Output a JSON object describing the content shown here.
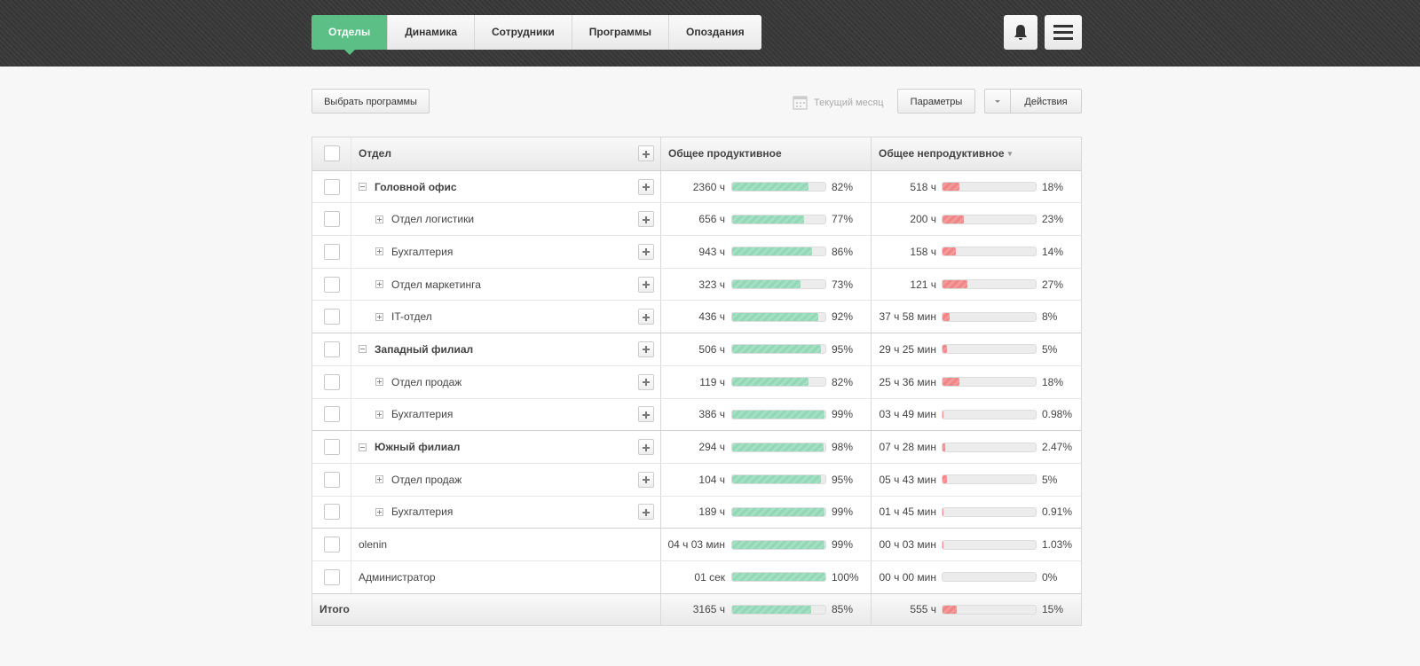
{
  "nav": {
    "tabs": [
      "Отделы",
      "Динамика",
      "Сотрудники",
      "Программы",
      "Опоздания"
    ],
    "active": 0
  },
  "toolbar": {
    "select_programs": "Выбрать программы",
    "period": "Текущий месяц",
    "params": "Параметры",
    "actions": "Действия"
  },
  "table": {
    "headers": [
      "Отдел",
      "Общее продуктивное",
      "Общее непродуктивное"
    ],
    "rows": [
      {
        "name": "Головной офис",
        "level": "group",
        "productive": "2360 ч",
        "productive_pct": {
          "value": 82,
          "label": "82%"
        },
        "unproductive": "518 ч",
        "unproductive_pct": {
          "value": 18,
          "label": "18%"
        }
      },
      {
        "name": "Отдел логистики",
        "level": "sub",
        "productive": "656 ч",
        "productive_pct": {
          "value": 77,
          "label": "77%"
        },
        "unproductive": "200 ч",
        "unproductive_pct": {
          "value": 23,
          "label": "23%"
        }
      },
      {
        "name": "Бухгалтерия",
        "level": "sub",
        "productive": "943 ч",
        "productive_pct": {
          "value": 86,
          "label": "86%"
        },
        "unproductive": "158 ч",
        "unproductive_pct": {
          "value": 14,
          "label": "14%"
        }
      },
      {
        "name": "Отдел маркетинга",
        "level": "sub",
        "productive": "323 ч",
        "productive_pct": {
          "value": 73,
          "label": "73%"
        },
        "unproductive": "121 ч",
        "unproductive_pct": {
          "value": 27,
          "label": "27%"
        }
      },
      {
        "name": "IT-отдел",
        "level": "sub",
        "productive": "436 ч",
        "productive_pct": {
          "value": 92,
          "label": "92%"
        },
        "unproductive": "37 ч 58 мин",
        "unproductive_pct": {
          "value": 8,
          "label": "8%"
        }
      },
      {
        "name": "Западный филиал",
        "level": "group",
        "productive": "506 ч",
        "productive_pct": {
          "value": 95,
          "label": "95%"
        },
        "unproductive": "29 ч 25 мин",
        "unproductive_pct": {
          "value": 5,
          "label": "5%"
        }
      },
      {
        "name": "Отдел продаж",
        "level": "sub",
        "productive": "119 ч",
        "productive_pct": {
          "value": 82,
          "label": "82%"
        },
        "unproductive": "25 ч 36 мин",
        "unproductive_pct": {
          "value": 18,
          "label": "18%"
        }
      },
      {
        "name": "Бухгалтерия",
        "level": "sub",
        "productive": "386 ч",
        "productive_pct": {
          "value": 99,
          "label": "99%"
        },
        "unproductive": "03 ч 49 мин",
        "unproductive_pct": {
          "value": 0.98,
          "label": "0.98%"
        }
      },
      {
        "name": "Южный филиал",
        "level": "group",
        "productive": "294 ч",
        "productive_pct": {
          "value": 98,
          "label": "98%"
        },
        "unproductive": "07 ч 28 мин",
        "unproductive_pct": {
          "value": 2.47,
          "label": "2.47%"
        }
      },
      {
        "name": "Отдел продаж",
        "level": "sub",
        "productive": "104 ч",
        "productive_pct": {
          "value": 95,
          "label": "95%"
        },
        "unproductive": "05 ч 43 мин",
        "unproductive_pct": {
          "value": 5,
          "label": "5%"
        }
      },
      {
        "name": "Бухгалтерия",
        "level": "sub",
        "productive": "189 ч",
        "productive_pct": {
          "value": 99,
          "label": "99%"
        },
        "unproductive": "01 ч 45 мин",
        "unproductive_pct": {
          "value": 0.91,
          "label": "0.91%"
        }
      },
      {
        "name": "olenin",
        "level": "user",
        "productive": "04 ч 03 мин",
        "productive_pct": {
          "value": 99,
          "label": "99%"
        },
        "unproductive": "00 ч 03 мин",
        "unproductive_pct": {
          "value": 1.03,
          "label": "1.03%"
        }
      },
      {
        "name": "Администратор",
        "level": "user",
        "productive": "01 сек",
        "productive_pct": {
          "value": 100,
          "label": "100%"
        },
        "unproductive": "00 ч 00 мин",
        "unproductive_pct": {
          "value": 0,
          "label": "0%"
        }
      }
    ],
    "total": {
      "name": "Итого",
      "productive": "3165 ч",
      "productive_pct": {
        "value": 85,
        "label": "85%"
      },
      "unproductive": "555 ч",
      "unproductive_pct": {
        "value": 15,
        "label": "15%"
      }
    }
  }
}
